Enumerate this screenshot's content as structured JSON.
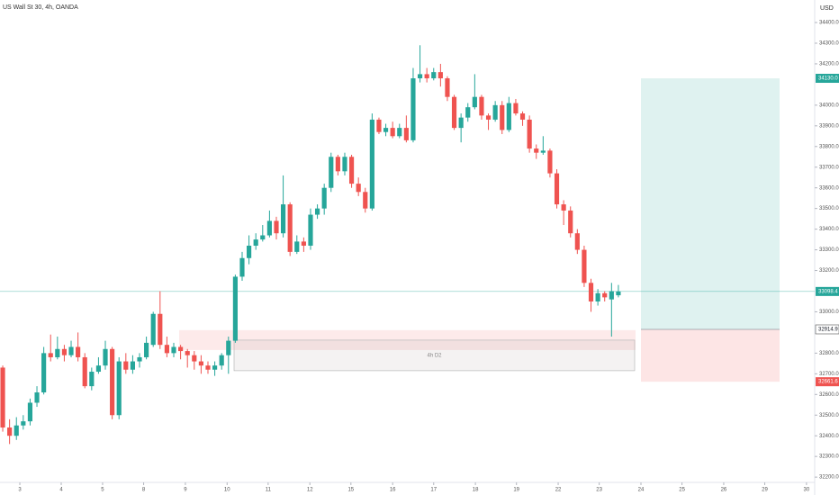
{
  "chart_data": {
    "type": "candlestick",
    "title": "US Wall St 30, 4h, OANDA",
    "y_axis_label": "USD",
    "up_color": "#26a69a",
    "down_color": "#ef5350",
    "open": [
      32730,
      32440,
      32400,
      32450,
      32470,
      32560,
      32610,
      32800,
      32780,
      32820,
      32790,
      32830,
      32780,
      32640,
      32710,
      32740,
      32820,
      32500,
      32760,
      32720,
      32760,
      32780,
      32840,
      32990,
      32840,
      32800,
      32830,
      32810,
      32790,
      32760,
      32740,
      32720,
      32740,
      32790,
      32860,
      33170,
      33260,
      33320,
      33350,
      33370,
      33440,
      33380,
      33520,
      33290,
      33340,
      33320,
      33470,
      33500,
      33600,
      33750,
      33680,
      33750,
      33620,
      33580,
      33500,
      33930,
      33870,
      33890,
      33850,
      33890,
      33830,
      34130,
      34150,
      34130,
      34160,
      34130,
      34040,
      33890,
      33940,
      33990,
      34040,
      33950,
      33930,
      34000,
      33880,
      34010,
      33960,
      33930,
      33790,
      33770,
      33780,
      33670,
      33520,
      33490,
      33380,
      33300,
      33140,
      33050,
      33090,
      33060,
      33080
    ],
    "high": [
      32740,
      32480,
      32490,
      32500,
      32580,
      32640,
      32830,
      32890,
      32880,
      32840,
      32860,
      32900,
      32800,
      32730,
      32780,
      32860,
      32830,
      32780,
      32800,
      32790,
      32800,
      32880,
      33000,
      33100,
      32880,
      32850,
      32840,
      32820,
      32810,
      32790,
      32760,
      32760,
      32800,
      32880,
      33180,
      33290,
      33370,
      33380,
      33420,
      33490,
      33460,
      33660,
      33530,
      33370,
      33360,
      33500,
      33520,
      33620,
      33770,
      33760,
      33770,
      33760,
      33650,
      33600,
      33960,
      33940,
      33910,
      33920,
      33910,
      33950,
      34180,
      34290,
      34180,
      34180,
      34200,
      34140,
      34050,
      33960,
      34010,
      34150,
      34050,
      33960,
      34020,
      34020,
      34040,
      34030,
      33970,
      33950,
      33810,
      33850,
      33790,
      33690,
      33540,
      33510,
      33400,
      33320,
      33160,
      33110,
      33100,
      33140,
      33130
    ],
    "low": [
      32420,
      32360,
      32380,
      32430,
      32450,
      32540,
      32600,
      32760,
      32770,
      32760,
      32780,
      32760,
      32630,
      32620,
      32700,
      32720,
      32480,
      32480,
      32700,
      32700,
      32730,
      32770,
      32830,
      32820,
      32780,
      32780,
      32770,
      32730,
      32720,
      32700,
      32700,
      32690,
      32720,
      32700,
      32850,
      33150,
      33230,
      33300,
      33340,
      33360,
      33350,
      33360,
      33270,
      33280,
      33290,
      33300,
      33450,
      33470,
      33580,
      33660,
      33660,
      33600,
      33560,
      33480,
      33490,
      33860,
      33850,
      33840,
      33840,
      33820,
      33820,
      34110,
      34110,
      34120,
      34090,
      34020,
      33880,
      33820,
      33920,
      33980,
      33930,
      33880,
      33920,
      33860,
      33870,
      33950,
      33900,
      33770,
      33740,
      33760,
      33650,
      33500,
      33420,
      33360,
      33280,
      33120,
      33000,
      33030,
      33050,
      32880,
      33070
    ],
    "close": [
      32440,
      32400,
      32450,
      32470,
      32560,
      32610,
      32800,
      32780,
      32820,
      32790,
      32830,
      32780,
      32640,
      32710,
      32740,
      32820,
      32500,
      32760,
      32720,
      32760,
      32780,
      32850,
      32990,
      32840,
      32800,
      32830,
      32810,
      32790,
      32760,
      32740,
      32720,
      32740,
      32790,
      32860,
      33170,
      33260,
      33320,
      33350,
      33370,
      33440,
      33380,
      33520,
      33290,
      33340,
      33320,
      33470,
      33500,
      33600,
      33750,
      33680,
      33750,
      33620,
      33580,
      33500,
      33930,
      33870,
      33890,
      33850,
      33890,
      33830,
      34130,
      34150,
      34130,
      34160,
      34130,
      34040,
      33890,
      33940,
      33990,
      34040,
      33950,
      33930,
      34000,
      33880,
      34010,
      33960,
      33930,
      33790,
      33770,
      33780,
      33670,
      33520,
      33490,
      33380,
      33300,
      33140,
      33050,
      33090,
      33070,
      33100,
      33098.4
    ],
    "ylim": [
      32157,
      34509
    ],
    "yticks": [
      {
        "value": 32200,
        "label": "32200.0"
      },
      {
        "value": 32300,
        "label": "32300.0"
      },
      {
        "value": 32400,
        "label": "32400.0"
      },
      {
        "value": 32500,
        "label": "32500.0"
      },
      {
        "value": 32600,
        "label": "32600.0"
      },
      {
        "value": 32700,
        "label": "32700.0"
      },
      {
        "value": 32800,
        "label": "32800.0"
      },
      {
        "value": 33000,
        "label": "33000.0"
      },
      {
        "value": 33200,
        "label": "33200.0"
      },
      {
        "value": 33300,
        "label": "33300.0"
      },
      {
        "value": 33400,
        "label": "33400.0"
      },
      {
        "value": 33500,
        "label": "33500.0"
      },
      {
        "value": 33600,
        "label": "33600.0"
      },
      {
        "value": 33700,
        "label": "33700.0"
      },
      {
        "value": 33800,
        "label": "33800.0"
      },
      {
        "value": 33900,
        "label": "33900.0"
      },
      {
        "value": 34000,
        "label": "34000.0"
      },
      {
        "value": 34200,
        "label": "34200.0"
      },
      {
        "value": 34300,
        "label": "34300.0"
      },
      {
        "value": 34400,
        "label": "34400.0"
      }
    ],
    "xlim": [
      -0.4,
      118.7
    ],
    "xticks": [
      {
        "value": 2.5,
        "label": "3"
      },
      {
        "value": 8.55,
        "label": "4"
      },
      {
        "value": 14.6,
        "label": "5"
      },
      {
        "value": 20.6,
        "label": "8"
      },
      {
        "value": 26.7,
        "label": "9"
      },
      {
        "value": 32.8,
        "label": "10"
      },
      {
        "value": 38.8,
        "label": "11"
      },
      {
        "value": 44.9,
        "label": "12"
      },
      {
        "value": 50.9,
        "label": "15"
      },
      {
        "value": 57.0,
        "label": "16"
      },
      {
        "value": 63.0,
        "label": "17"
      },
      {
        "value": 69.1,
        "label": "18"
      },
      {
        "value": 75.1,
        "label": "19"
      },
      {
        "value": 81.2,
        "label": "22"
      },
      {
        "value": 87.2,
        "label": "23"
      },
      {
        "value": 93.3,
        "label": "24"
      },
      {
        "value": 99.3,
        "label": "25"
      },
      {
        "value": 105.4,
        "label": "26"
      },
      {
        "value": 111.4,
        "label": "29"
      },
      {
        "value": 117.5,
        "label": "30"
      }
    ],
    "last_price": 33098.4,
    "zones": [
      {
        "high": 32911,
        "low": 32815
      },
      {
        "label": "4h D2",
        "high": 32863,
        "low": 32715
      }
    ],
    "position": {
      "target": {
        "value": 34130,
        "label": "34130.0"
      },
      "entry": 32914.9,
      "stop": 32661.6
    }
  }
}
